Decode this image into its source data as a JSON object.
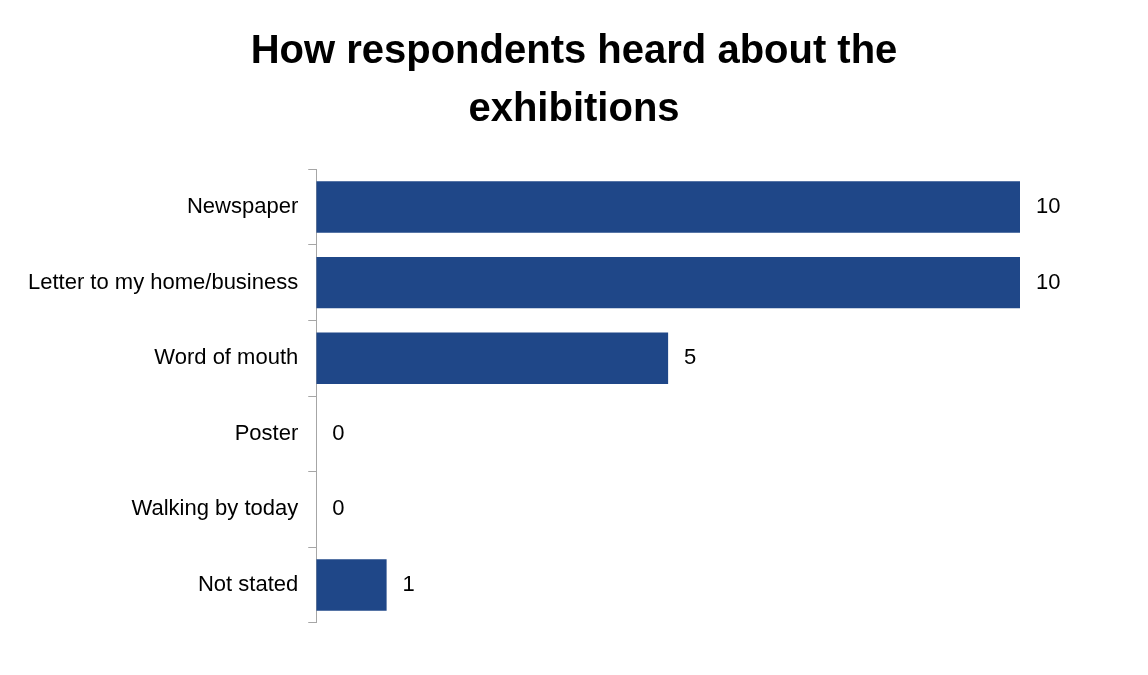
{
  "chart_data": {
    "type": "bar",
    "orientation": "horizontal",
    "title": "How respondents heard about the exhibitions",
    "categories": [
      "Newspaper",
      "Letter to my home/business",
      "Word of mouth",
      "Poster",
      "Walking by today",
      "Not stated"
    ],
    "values": [
      10,
      10,
      5,
      0,
      0,
      1
    ],
    "color": "#1f4788",
    "data_labels": true
  }
}
